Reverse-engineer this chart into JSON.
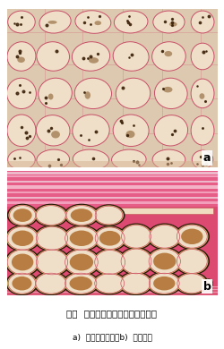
{
  "figure_title": "図１  放射柔細胞中のカウチューク",
  "figure_caption": "a)  辺材中央部　　b)  心材外部",
  "label_a": "a",
  "label_b": "b",
  "bg_color": "#ffffff",
  "title_fontsize": 7.5,
  "caption_fontsize": 6.5,
  "label_fontsize": 9
}
